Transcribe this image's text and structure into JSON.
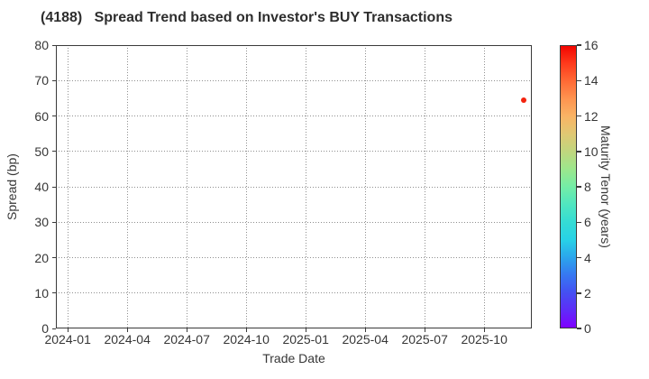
{
  "chart_data": {
    "type": "scatter",
    "title": "(4188)   Spread Trend based on Investor's BUY Transactions",
    "xlabel": "Trade Date",
    "ylabel": "Spread (bp)",
    "grid": {
      "show": true,
      "style": "dotted",
      "color": "#8f8f8f"
    },
    "x_axis": {
      "tick_labels": [
        "2024-01",
        "2024-04",
        "2024-07",
        "2024-10",
        "2025-01",
        "2025-04",
        "2025-07",
        "2025-10"
      ],
      "tick_months": [
        0,
        3,
        6,
        9,
        12,
        15,
        18,
        21
      ],
      "range_months": [
        -0.6,
        23.4
      ],
      "epoch_label": "2024-01"
    },
    "y_axis": {
      "ticks": [
        0,
        10,
        20,
        30,
        40,
        50,
        60,
        70,
        80
      ],
      "range": [
        0,
        80
      ]
    },
    "colorbar": {
      "label": "Maturity Tenor (years)",
      "range": [
        0,
        16
      ],
      "ticks": [
        0,
        2,
        4,
        6,
        8,
        10,
        12,
        14,
        16
      ],
      "gradient_stops": [
        {
          "value": 16,
          "color": "#f30500"
        },
        {
          "value": 15,
          "color": "#fe3b1c"
        },
        {
          "value": 14,
          "color": "#ff6a35"
        },
        {
          "value": 13,
          "color": "#fe9450"
        },
        {
          "value": 12,
          "color": "#f9b465"
        },
        {
          "value": 11,
          "color": "#e0c873"
        },
        {
          "value": 10,
          "color": "#c0d67e"
        },
        {
          "value": 9,
          "color": "#9ce78c"
        },
        {
          "value": 8,
          "color": "#74eda6"
        },
        {
          "value": 7,
          "color": "#50e6c0"
        },
        {
          "value": 6,
          "color": "#35dcd4"
        },
        {
          "value": 5,
          "color": "#28d2e6"
        },
        {
          "value": 4,
          "color": "#2ba6ec"
        },
        {
          "value": 3,
          "color": "#3678f1"
        },
        {
          "value": 2,
          "color": "#4450f2"
        },
        {
          "value": 1,
          "color": "#5e2cf8"
        },
        {
          "value": 0,
          "color": "#7f00ff"
        }
      ]
    },
    "points": [
      {
        "trade_date_approx": "2025-12",
        "months_from_2024_01": 23.0,
        "spread_bp": 64.5,
        "maturity_tenor_years": 15,
        "color": "#f3230e",
        "marker_size_px": 6
      }
    ]
  },
  "colors": {
    "background": "#ffffff",
    "spine": "#3a3a3a",
    "text": "#363636",
    "title": "#2e2e2e"
  }
}
